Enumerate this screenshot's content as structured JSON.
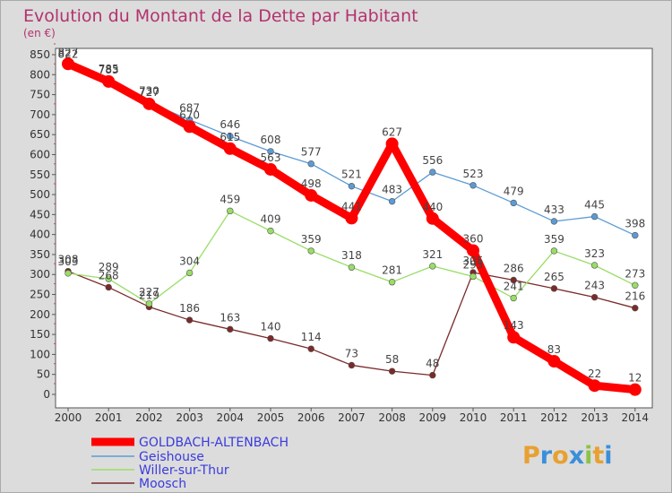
{
  "chart_data": {
    "type": "line",
    "title": "Evolution du Montant de la Dette par Habitant",
    "subtitle": "(en €)",
    "x": [
      "2000",
      "2001",
      "2002",
      "2003",
      "2004",
      "2005",
      "2006",
      "2007",
      "2008",
      "2009",
      "2010",
      "2011",
      "2012",
      "2013",
      "2014"
    ],
    "ylim": [
      0,
      850
    ],
    "yticks": [
      0,
      50,
      100,
      150,
      200,
      250,
      300,
      350,
      400,
      450,
      500,
      550,
      600,
      650,
      700,
      750,
      800,
      850
    ],
    "grid": false,
    "legend_position": "bottom-left",
    "series": [
      {
        "name": "GOLDBACH-ALTENBACH",
        "color": "#ff0000",
        "values": [
          827,
          783,
          727,
          670,
          615,
          563,
          498,
          441,
          627,
          440,
          360,
          143,
          83,
          22,
          12
        ]
      },
      {
        "name": "Geishouse",
        "color": "#5b9bd5",
        "values": [
          822,
          785,
          730,
          687,
          646,
          608,
          577,
          521,
          483,
          556,
          523,
          479,
          433,
          445,
          398
        ]
      },
      {
        "name": "Willer-sur-Thur",
        "color": "#99dd66",
        "values": [
          303,
          289,
          227,
          304,
          459,
          409,
          359,
          318,
          281,
          321,
          295,
          241,
          359,
          323,
          273
        ]
      },
      {
        "name": "Moosch",
        "color": "#7a2a2a",
        "values": [
          308,
          268,
          219,
          186,
          163,
          140,
          114,
          73,
          58,
          48,
          305,
          286,
          265,
          243,
          216
        ]
      }
    ],
    "logo": "Proxiti"
  }
}
